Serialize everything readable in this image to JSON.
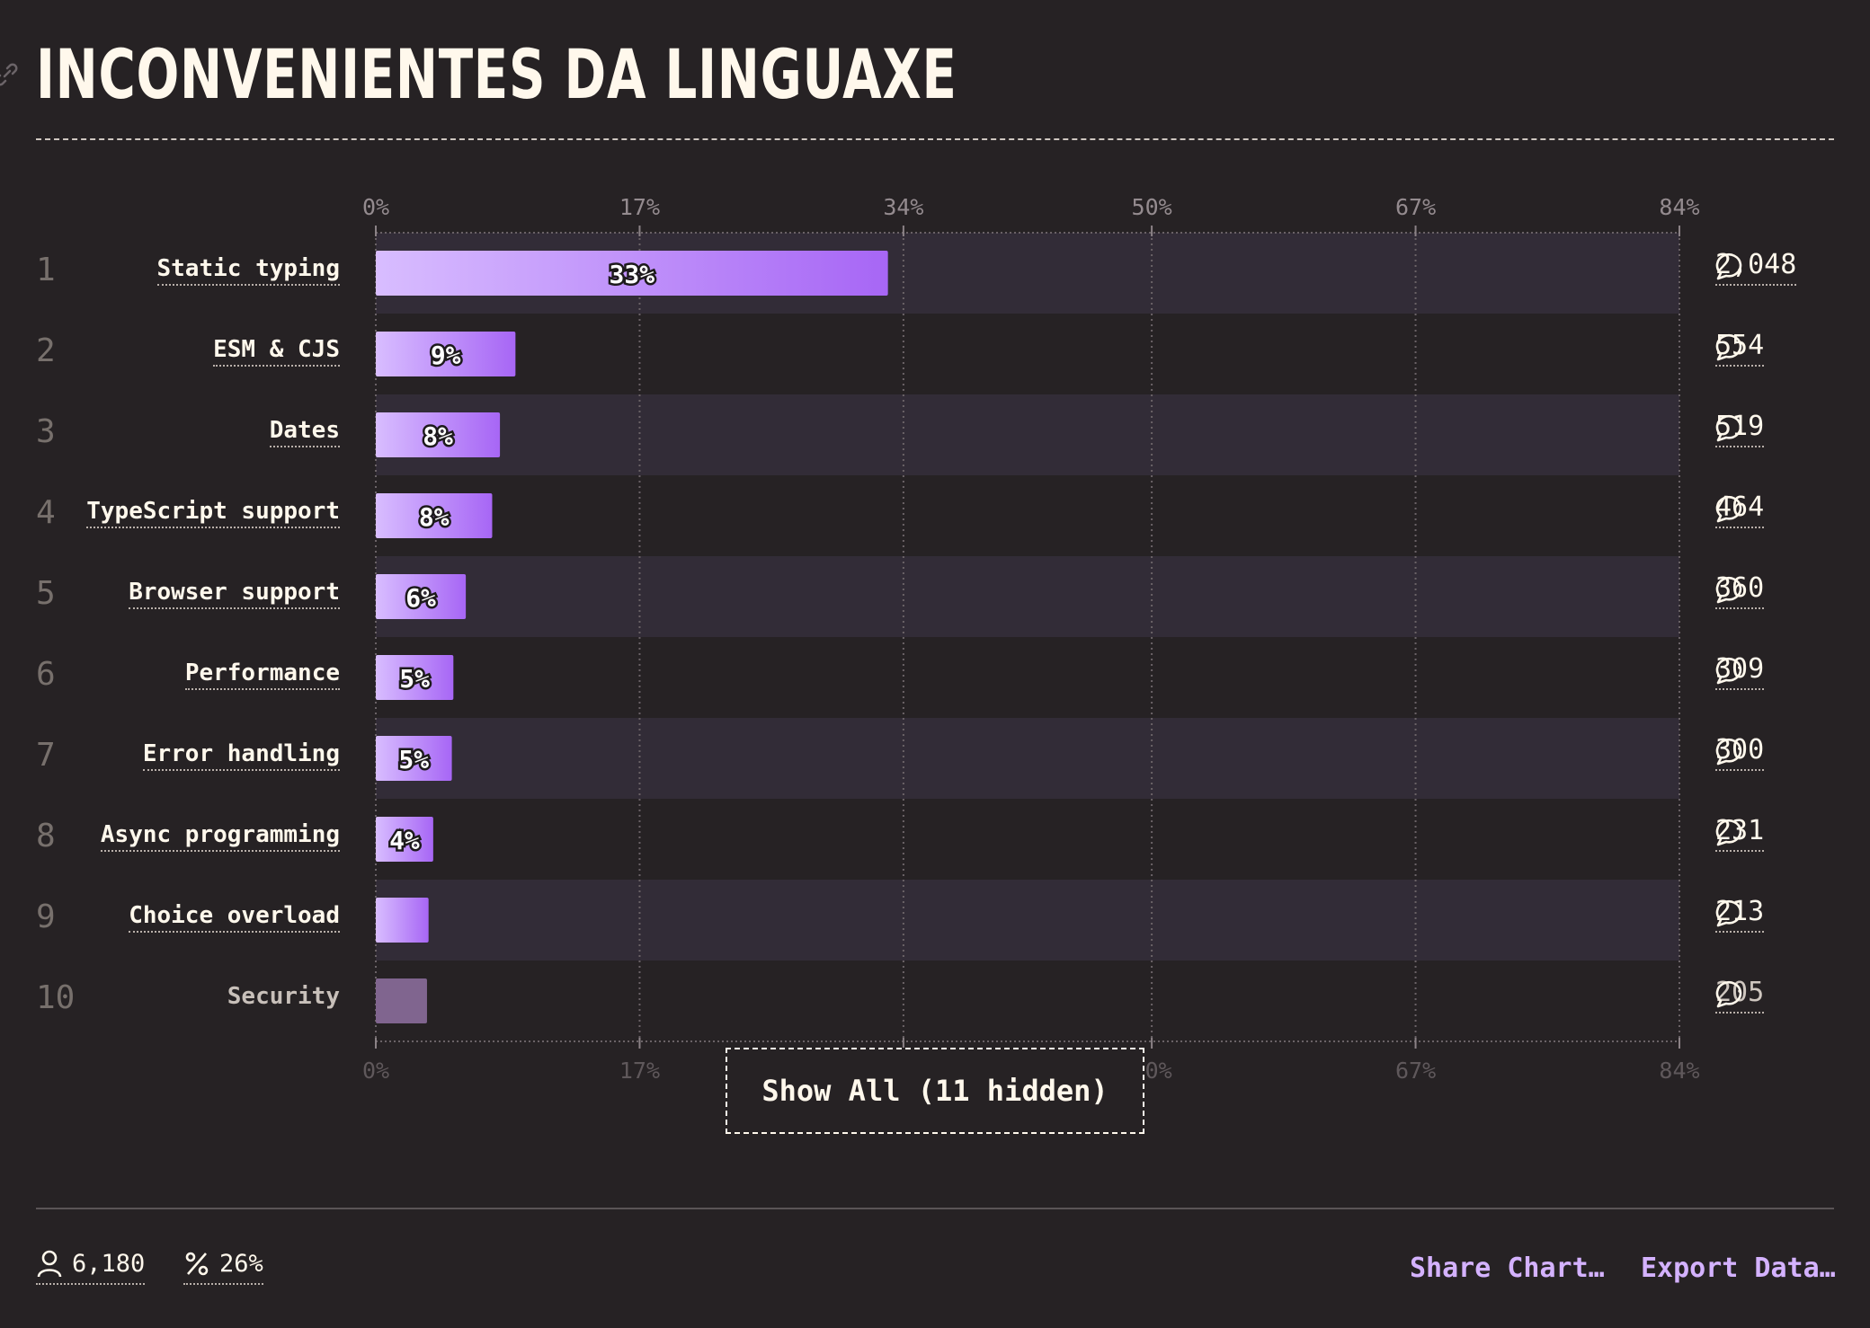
{
  "title": "INCONVENIENTES DA LINGUAXE",
  "colors": {
    "background": "#262224",
    "band": "#322c37",
    "accent": "#d4b2ff",
    "bar_start": "#d8bdff",
    "bar_end": "#a766f5"
  },
  "icons": {
    "title": "link-icon",
    "count": "speech-bubble-icon",
    "respondents": "person-icon",
    "percentage": "percent-icon"
  },
  "chart_data": {
    "type": "bar",
    "orientation": "horizontal",
    "categories": [
      "Static typing",
      "ESM & CJS",
      "Dates",
      "TypeScript support",
      "Browser support",
      "Performance",
      "Error handling",
      "Async programming",
      "Choice overload",
      "Security"
    ],
    "ranks": [
      "1",
      "2",
      "3",
      "4",
      "5",
      "6",
      "7",
      "8",
      "9",
      "10"
    ],
    "values": [
      33,
      9,
      8,
      7.5,
      5.8,
      5,
      4.9,
      3.7,
      3.4,
      3.3
    ],
    "value_labels": [
      "33%",
      "9%",
      "8%",
      "8%",
      "6%",
      "5%",
      "5%",
      "4%",
      "",
      ""
    ],
    "counts": [
      "2,048",
      "554",
      "519",
      "464",
      "360",
      "309",
      "300",
      "231",
      "213",
      "205"
    ],
    "xlim": [
      0,
      84
    ],
    "ticks": [
      0,
      17,
      34,
      50,
      67,
      84
    ],
    "tick_labels": [
      "0%",
      "17%",
      "34%",
      "50%",
      "67%",
      "84%"
    ],
    "grid": true
  },
  "show_all_label": "Show All (11 hidden)",
  "footer": {
    "respondents": "6,180",
    "percentage": "26%",
    "share_label": "Share Chart…",
    "export_label": "Export Data…"
  }
}
